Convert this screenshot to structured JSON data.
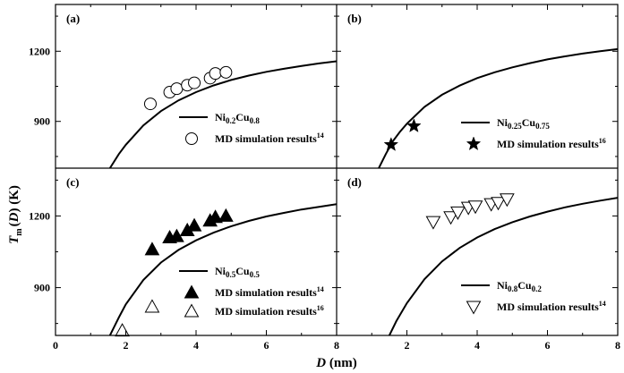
{
  "chart_data": {
    "type": "multi-panel-line-scatter",
    "xlabel_parts": {
      "main": "D",
      "unit": " (nm)"
    },
    "ylabel_parts": {
      "T": "T",
      "sub": "m",
      "rest": "(",
      "D": "D",
      "close": ") (K)"
    },
    "xlim": [
      0,
      8
    ],
    "xticks": [
      0,
      2,
      4,
      6,
      8
    ],
    "ylim": [
      700,
      1400
    ],
    "yticks": [
      900,
      1200
    ],
    "panels": [
      {
        "label": "(a)",
        "curve": {
          "name_parts": [
            "Ni",
            "0.2",
            "Cu",
            "0.8"
          ],
          "points": [
            [
              1.55,
              700
            ],
            [
              1.8,
              760
            ],
            [
              2.0,
              800
            ],
            [
              2.5,
              883
            ],
            [
              3.0,
              944
            ],
            [
              3.5,
              990
            ],
            [
              4.0,
              1025
            ],
            [
              4.5,
              1054
            ],
            [
              5.0,
              1077
            ],
            [
              5.5,
              1096
            ],
            [
              6.0,
              1112
            ],
            [
              6.5,
              1125
            ],
            [
              7.0,
              1137
            ],
            [
              7.5,
              1148
            ],
            [
              8.0,
              1157
            ]
          ]
        },
        "series": [
          {
            "name": "MD simulation results",
            "ref": "14",
            "marker": "open-circle",
            "x": [
              2.7,
              3.25,
              3.45,
              3.75,
              3.95,
              4.4,
              4.55,
              4.85
            ],
            "y": [
              975,
              1025,
              1040,
              1055,
              1065,
              1085,
              1105,
              1110
            ]
          }
        ]
      },
      {
        "label": "(b)",
        "curve": {
          "name_parts": [
            "Ni",
            "0.25",
            "Cu",
            "0.75"
          ],
          "points": [
            [
              1.2,
              700
            ],
            [
              1.4,
              760
            ],
            [
              1.6,
              815
            ],
            [
              1.8,
              855
            ],
            [
              2.0,
              890
            ],
            [
              2.5,
              962
            ],
            [
              3.0,
              1014
            ],
            [
              3.5,
              1053
            ],
            [
              4.0,
              1085
            ],
            [
              4.5,
              1110
            ],
            [
              5.0,
              1131
            ],
            [
              5.5,
              1149
            ],
            [
              6.0,
              1165
            ],
            [
              6.5,
              1178
            ],
            [
              7.0,
              1190
            ],
            [
              7.5,
              1200
            ],
            [
              8.0,
              1209
            ]
          ]
        },
        "series": [
          {
            "name": "MD simulation results",
            "ref": "16",
            "marker": "filled-star",
            "x": [
              1.55,
              2.2
            ],
            "y": [
              800,
              880
            ]
          }
        ]
      },
      {
        "label": "(c)",
        "curve": {
          "name_parts": [
            "Ni",
            "0.5",
            "Cu",
            "0.5"
          ],
          "points": [
            [
              1.55,
              700
            ],
            [
              1.8,
              775
            ],
            [
              2.0,
              830
            ],
            [
              2.5,
              932
            ],
            [
              3.0,
              1005
            ],
            [
              3.5,
              1058
            ],
            [
              4.0,
              1098
            ],
            [
              4.5,
              1130
            ],
            [
              5.0,
              1157
            ],
            [
              5.5,
              1179
            ],
            [
              6.0,
              1198
            ],
            [
              6.5,
              1213
            ],
            [
              7.0,
              1227
            ],
            [
              7.5,
              1238
            ],
            [
              8.0,
              1249
            ]
          ]
        },
        "series": [
          {
            "name": "MD simulation results",
            "ref": "14",
            "marker": "filled-triangle",
            "x": [
              2.75,
              3.25,
              3.45,
              3.75,
              3.95,
              4.4,
              4.55,
              4.85
            ],
            "y": [
              1060,
              1110,
              1115,
              1140,
              1160,
              1180,
              1195,
              1200
            ]
          },
          {
            "name": "MD simulation results",
            "ref": "16",
            "marker": "open-triangle",
            "x": [
              1.9,
              2.75
            ],
            "y": [
              720,
              820
            ]
          }
        ]
      },
      {
        "label": "(d)",
        "curve": {
          "name_parts": [
            "Ni",
            "0.8",
            "Cu",
            "0.2"
          ],
          "points": [
            [
              1.5,
              700
            ],
            [
              1.7,
              760
            ],
            [
              2.0,
              835
            ],
            [
              2.5,
              935
            ],
            [
              3.0,
              1010
            ],
            [
              3.5,
              1066
            ],
            [
              4.0,
              1110
            ],
            [
              4.5,
              1145
            ],
            [
              5.0,
              1174
            ],
            [
              5.5,
              1198
            ],
            [
              6.0,
              1218
            ],
            [
              6.5,
              1236
            ],
            [
              7.0,
              1251
            ],
            [
              7.5,
              1264
            ],
            [
              8.0,
              1276
            ]
          ]
        },
        "series": [
          {
            "name": "MD simulation results",
            "ref": "14",
            "marker": "open-down-triangle",
            "x": [
              2.75,
              3.25,
              3.45,
              3.75,
              3.95,
              4.4,
              4.6,
              4.85
            ],
            "y": [
              1175,
              1195,
              1215,
              1235,
              1240,
              1250,
              1255,
              1270
            ]
          }
        ]
      }
    ]
  }
}
